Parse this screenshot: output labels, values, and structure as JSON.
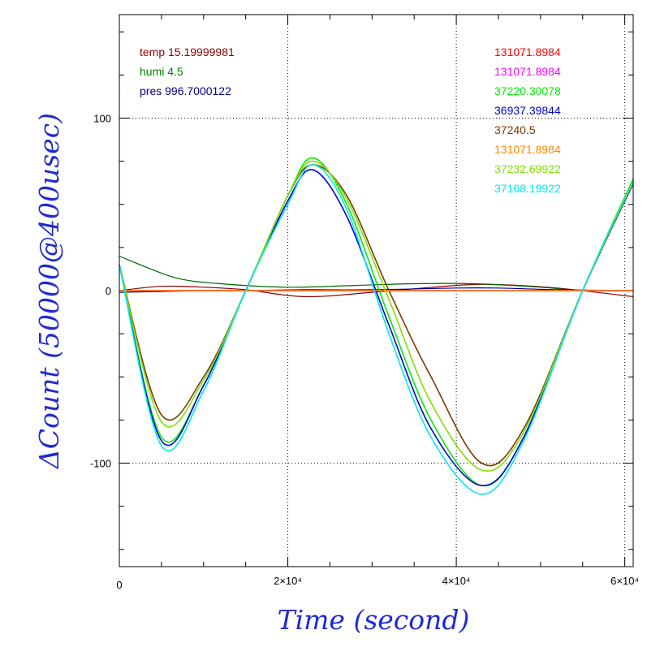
{
  "chart_data": {
    "type": "line",
    "xlabel": "Time (second)",
    "ylabel": "ΔCount (50000@400usec)",
    "xlim": [
      0,
      61000
    ],
    "ylim": [
      -160,
      160
    ],
    "grid": true,
    "x_ticks": [
      {
        "value": 0,
        "label": "0"
      },
      {
        "value": 20000,
        "label": "2×10⁴"
      },
      {
        "value": 40000,
        "label": "4×10⁴"
      },
      {
        "value": 60000,
        "label": "6×10⁴"
      }
    ],
    "y_ticks": [
      {
        "value": 100,
        "label": "100"
      },
      {
        "value": 0,
        "label": "0"
      },
      {
        "value": -100,
        "label": "-100"
      }
    ],
    "env_legend": [
      {
        "text": "temp 15.19999981",
        "color": "#8b0000"
      },
      {
        "text": "humi 4.5",
        "color": "#008000"
      },
      {
        "text": "pres 996.7000122",
        "color": "#00008b"
      }
    ],
    "x": [
      0,
      5000,
      10000,
      15000,
      20000,
      23000,
      27000,
      32000,
      37000,
      43000,
      48000,
      55000,
      61000
    ],
    "series": [
      {
        "name": "131071.8984",
        "color": "#ff0000",
        "values": [
          0,
          0,
          0,
          0,
          0,
          0,
          0,
          0,
          0,
          0,
          0,
          0,
          0
        ]
      },
      {
        "name": "131071.8984",
        "color": "#ff00ff",
        "values": [
          0,
          0,
          0,
          0,
          0,
          0,
          0,
          0,
          0,
          0,
          0,
          0,
          0
        ]
      },
      {
        "name": "37220.30078",
        "color": "#00ee00",
        "values": [
          15,
          -85,
          -55,
          0,
          55,
          77,
          50,
          -15,
          -75,
          -113,
          -85,
          0,
          65
        ]
      },
      {
        "name": "36937.39844",
        "color": "#0000dd",
        "values": [
          15,
          -87,
          -55,
          0,
          52,
          70,
          43,
          -20,
          -80,
          -113,
          -85,
          0,
          62
        ]
      },
      {
        "name": "37240.5",
        "color": "#7a3a00",
        "values": [
          15,
          -72,
          -50,
          0,
          55,
          73,
          55,
          0,
          -50,
          -100,
          -80,
          0,
          62
        ]
      },
      {
        "name": "131071.8984",
        "color": "#ff8800",
        "values": [
          0,
          0,
          0,
          0,
          0,
          0,
          0,
          0,
          0,
          0,
          0,
          0,
          0
        ]
      },
      {
        "name": "37232.69922",
        "color": "#80e000",
        "values": [
          15,
          -76,
          -52,
          0,
          55,
          75,
          53,
          -5,
          -65,
          -104,
          -82,
          0,
          64
        ]
      },
      {
        "name": "37168.19922",
        "color": "#00e8ee",
        "values": [
          15,
          -90,
          -58,
          0,
          50,
          73,
          47,
          -25,
          -85,
          -118,
          -87,
          0,
          63
        ]
      }
    ],
    "env_series": [
      {
        "color": "#8b0000",
        "x": [
          0,
          5000,
          10000,
          15000,
          22000,
          30000,
          40000,
          45000,
          52000,
          61000
        ],
        "values": [
          0,
          2.5,
          2.0,
          0.5,
          -3.5,
          -1.0,
          3.0,
          3.5,
          1.5,
          -3.5
        ]
      },
      {
        "color": "#006400",
        "x": [
          0,
          3000,
          7000,
          12000,
          20000,
          28000,
          35000,
          42000,
          50000,
          55000,
          61000
        ],
        "values": [
          20,
          14,
          7,
          4,
          2,
          3,
          4,
          4,
          2,
          0,
          0
        ]
      },
      {
        "color": "#00008b",
        "x": [
          0,
          5000,
          10000,
          15000,
          22000,
          30000,
          40000,
          45000,
          52000,
          61000
        ],
        "values": [
          -1,
          -0.5,
          0,
          0,
          0.5,
          0.5,
          1.5,
          1.5,
          0.5,
          0
        ]
      }
    ]
  }
}
